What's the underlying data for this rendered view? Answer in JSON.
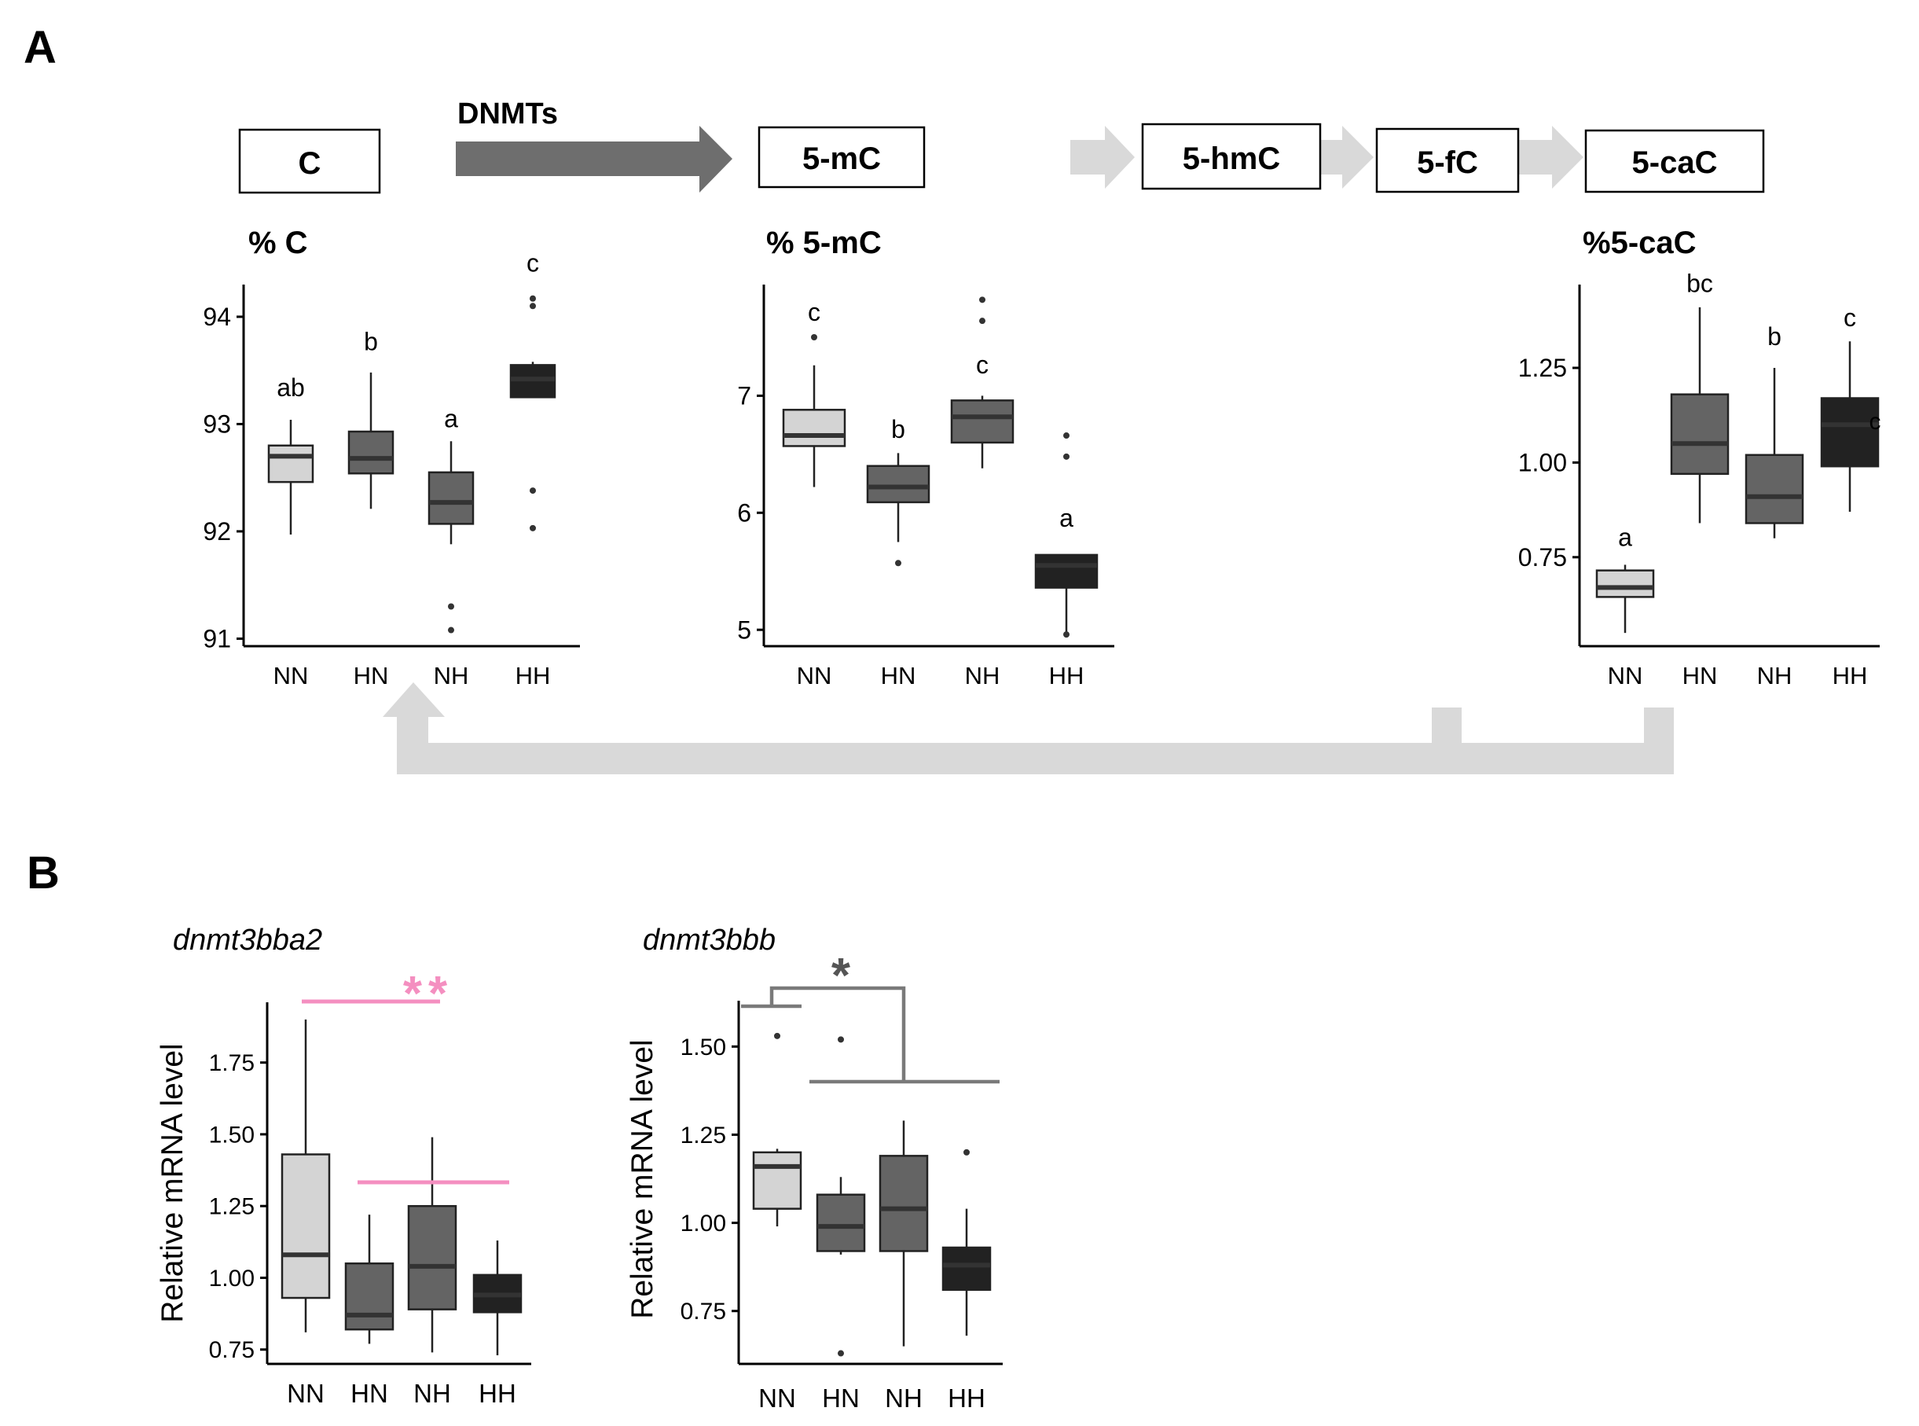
{
  "panel_labels": {
    "a": "A",
    "b": "B"
  },
  "pathway": {
    "enzyme_label": "DNMTs",
    "nodes": [
      "C",
      "5-mC",
      "5-hmC",
      "5-fC",
      "5-caC"
    ]
  },
  "colors": {
    "NN": "#d4d4d4",
    "HN": "#646464",
    "NH": "#646464",
    "HH": "#222222",
    "arrow_dark": "#6e6e6e",
    "arrow_light": "#d9d9d9",
    "sig_pink": "#f48fc0",
    "sig_gray": "#7a7a7a"
  },
  "chart_data": [
    {
      "id": "pctC",
      "type": "box",
      "title": "% C",
      "title_style": "bold",
      "categories": [
        "NN",
        "HN",
        "NH",
        "HH"
      ],
      "ylim": [
        90.93,
        94.3
      ],
      "ticks": [
        91,
        92,
        93,
        94
      ],
      "tick_labels": [
        "91",
        "92",
        "93",
        "94"
      ],
      "ylabel": "",
      "boxes": [
        {
          "min": 91.97,
          "q1": 92.46,
          "median": 92.7,
          "q3": 92.8,
          "max": 93.04,
          "outliers": []
        },
        {
          "min": 92.21,
          "q1": 92.54,
          "median": 92.68,
          "q3": 92.93,
          "max": 93.48,
          "outliers": []
        },
        {
          "min": 91.88,
          "q1": 92.07,
          "median": 92.27,
          "q3": 92.55,
          "max": 92.84,
          "outliers": [
            91.3,
            91.08
          ]
        },
        {
          "min": 93.25,
          "q1": 93.25,
          "median": 93.42,
          "q3": 93.55,
          "max": 93.58,
          "outliers": [
            94.17,
            94.1,
            92.38,
            92.03
          ]
        }
      ],
      "letters": [
        {
          "text": "ab",
          "y": 93.26
        },
        {
          "text": "b",
          "y": 93.69
        },
        {
          "text": "a",
          "y": 92.97
        },
        {
          "text": "c",
          "y": 94.42
        }
      ]
    },
    {
      "id": "pct5mC",
      "type": "box",
      "title": "% 5-mC",
      "title_style": "bold",
      "categories": [
        "NN",
        "HN",
        "NH",
        "HH"
      ],
      "ylim": [
        4.86,
        7.95
      ],
      "ticks": [
        5,
        6,
        7
      ],
      "tick_labels": [
        "5",
        "6",
        "7"
      ],
      "ylabel": "",
      "boxes": [
        {
          "min": 6.22,
          "q1": 6.57,
          "median": 6.66,
          "q3": 6.88,
          "max": 7.26,
          "outliers": [
            7.5
          ]
        },
        {
          "min": 5.75,
          "q1": 6.09,
          "median": 6.22,
          "q3": 6.4,
          "max": 6.51,
          "outliers": [
            5.57
          ]
        },
        {
          "min": 6.38,
          "q1": 6.6,
          "median": 6.82,
          "q3": 6.96,
          "max": 7.0,
          "outliers": [
            7.82,
            7.64
          ]
        },
        {
          "min": 4.96,
          "q1": 5.36,
          "median": 5.55,
          "q3": 5.64,
          "max": 5.64,
          "outliers": [
            6.66,
            6.48,
            4.96
          ]
        }
      ],
      "letters": [
        {
          "text": "c",
          "y": 7.64
        },
        {
          "text": "b",
          "y": 6.64
        },
        {
          "text": "c",
          "y": 7.19
        },
        {
          "text": "a",
          "y": 5.88
        }
      ]
    },
    {
      "id": "pct5caC",
      "type": "box",
      "title": "%5-caC",
      "title_style": "bold",
      "categories": [
        "NN",
        "HN",
        "NH",
        "HH"
      ],
      "ylim": [
        0.515,
        1.47
      ],
      "ticks": [
        0.75,
        1.0,
        1.25
      ],
      "tick_labels": [
        "0.75",
        "1.00",
        "1.25"
      ],
      "ylabel": "",
      "boxes": [
        {
          "min": 0.55,
          "q1": 0.645,
          "median": 0.67,
          "q3": 0.715,
          "max": 0.73,
          "outliers": []
        },
        {
          "min": 0.84,
          "q1": 0.97,
          "median": 1.05,
          "q3": 1.18,
          "max": 1.41,
          "outliers": []
        },
        {
          "min": 0.8,
          "q1": 0.84,
          "median": 0.91,
          "q3": 1.02,
          "max": 1.25,
          "outliers": []
        },
        {
          "min": 0.87,
          "q1": 0.99,
          "median": 1.1,
          "q3": 1.17,
          "max": 1.32,
          "outliers": []
        }
      ],
      "letters": [
        {
          "text": "a",
          "y": 0.78
        },
        {
          "text": "bc",
          "y": 1.45
        },
        {
          "text": "b",
          "y": 1.31
        },
        {
          "text": "c",
          "y": 1.36
        }
      ]
    },
    {
      "id": "dnmt3bba2",
      "type": "box",
      "title": "dnmt3bba2",
      "title_style": "italic",
      "categories": [
        "NN",
        "HN",
        "NH",
        "HH"
      ],
      "ylim": [
        0.7,
        1.96
      ],
      "ticks": [
        0.75,
        1.0,
        1.25,
        1.5,
        1.75
      ],
      "tick_labels": [
        "0.75",
        "1.00",
        "1.25",
        "1.50",
        "1.75"
      ],
      "ylabel": "Relative mRNA level",
      "boxes": [
        {
          "min": 0.81,
          "q1": 0.93,
          "median": 1.08,
          "q3": 1.43,
          "max": 1.9,
          "outliers": []
        },
        {
          "min": 0.77,
          "q1": 0.82,
          "median": 0.87,
          "q3": 1.05,
          "max": 1.22,
          "outliers": []
        },
        {
          "min": 0.74,
          "q1": 0.89,
          "median": 1.04,
          "q3": 1.25,
          "max": 1.49,
          "outliers": []
        },
        {
          "min": 0.73,
          "q1": 0.88,
          "median": 0.94,
          "q3": 1.01,
          "max": 1.13,
          "outliers": []
        }
      ],
      "letters": [],
      "significance": {
        "label": "**",
        "color": "pink"
      }
    },
    {
      "id": "dnmt3bbb",
      "type": "box",
      "title": "dnmt3bbb",
      "title_style": "italic",
      "categories": [
        "NN",
        "HN",
        "NH",
        "HH"
      ],
      "ylim": [
        0.6,
        1.63
      ],
      "ticks": [
        0.75,
        1.0,
        1.25,
        1.5
      ],
      "tick_labels": [
        "0.75",
        "1.00",
        "1.25",
        "1.50"
      ],
      "ylabel": "Relative mRNA level",
      "boxes": [
        {
          "min": 0.99,
          "q1": 1.04,
          "median": 1.16,
          "q3": 1.2,
          "max": 1.21,
          "outliers": [
            1.53
          ]
        },
        {
          "min": 0.91,
          "q1": 0.92,
          "median": 0.99,
          "q3": 1.08,
          "max": 1.13,
          "outliers": [
            1.52,
            0.63
          ]
        },
        {
          "min": 0.65,
          "q1": 0.92,
          "median": 1.04,
          "q3": 1.19,
          "max": 1.29,
          "outliers": []
        },
        {
          "min": 0.68,
          "q1": 0.81,
          "median": 0.88,
          "q3": 0.93,
          "max": 1.04,
          "outliers": [
            1.2
          ]
        }
      ],
      "letters": [],
      "significance": {
        "label": "*",
        "color": "gray"
      }
    }
  ]
}
